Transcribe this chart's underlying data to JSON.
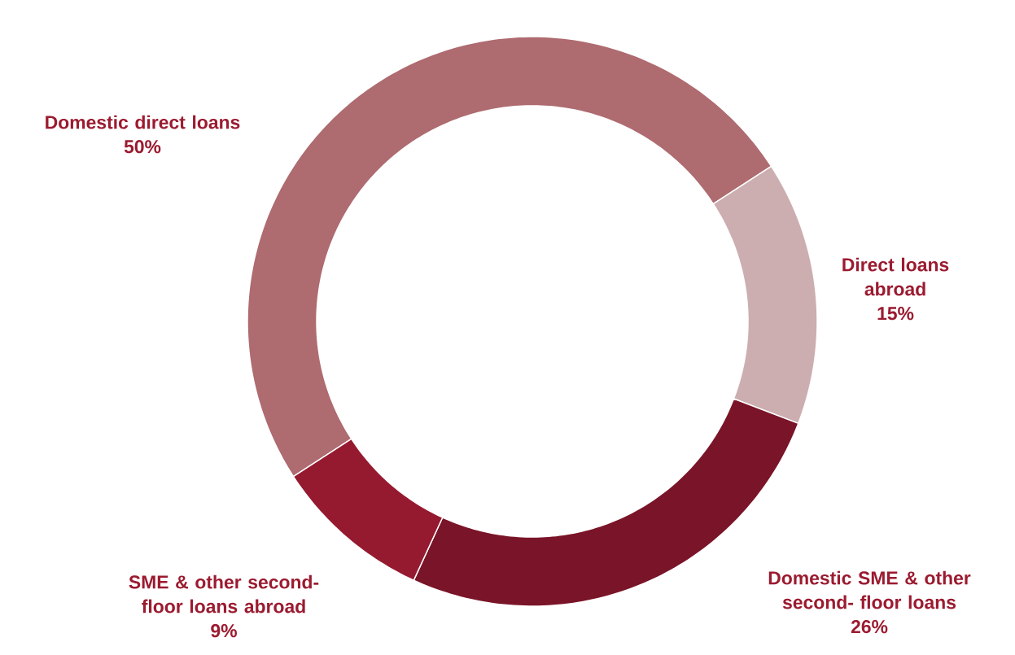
{
  "chart_data": {
    "type": "donut",
    "categories": [
      "Domestic direct loans",
      "Direct loans abroad",
      "Domestic SME & other second- floor loans",
      "SME & other second-floor loans abroad"
    ],
    "values": [
      50,
      15,
      26,
      9
    ],
    "value_labels": [
      "50%",
      "15%",
      "26%",
      "9%"
    ],
    "colors": [
      "#ae6b70",
      "#ccaeb0",
      "#7a1428",
      "#951a30"
    ]
  }
}
